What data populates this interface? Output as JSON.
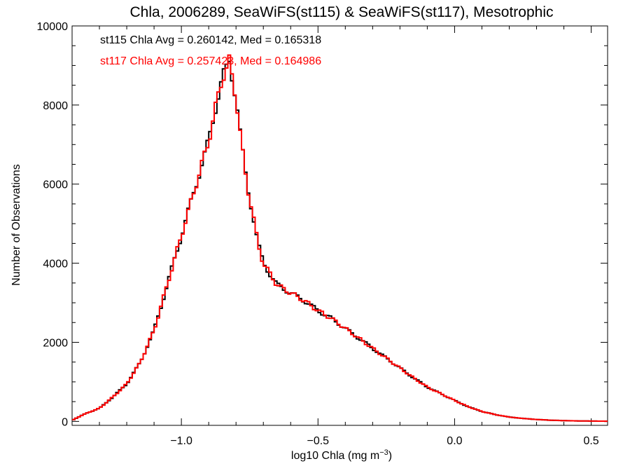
{
  "chart_data": {
    "type": "line",
    "step": true,
    "title": "Chla, 2006289, SeaWiFS(st115) & SeaWiFS(st117), Mesotrophic",
    "xlabel_main": "log10 Chla (mg m",
    "xlabel_sup": "−3",
    "xlabel_close": ")",
    "ylabel": "Number of Observations",
    "xlim": [
      -1.4,
      0.56
    ],
    "ylim": [
      -100,
      10000
    ],
    "xticks": [
      -1.0,
      -0.5,
      0.0,
      0.5
    ],
    "xtick_labels": [
      "−1.0",
      "−0.5",
      "0.0",
      "0.5"
    ],
    "yticks": [
      0,
      2000,
      4000,
      6000,
      8000,
      10000
    ],
    "ytick_labels": [
      "0",
      "2000",
      "4000",
      "6000",
      "8000",
      "10000"
    ],
    "annotations": [
      {
        "text": "st115 Chla Avg = 0.260142, Med = 0.165318",
        "color": "#000000"
      },
      {
        "text": "st117 Chla Avg = 0.257423, Med = 0.164986",
        "color": "#ff0000"
      }
    ],
    "shape_points": [
      [
        -1.4,
        30
      ],
      [
        -1.35,
        200
      ],
      [
        -1.3,
        330
      ],
      [
        -1.25,
        620
      ],
      [
        -1.2,
        950
      ],
      [
        -1.15,
        1500
      ],
      [
        -1.1,
        2300
      ],
      [
        -1.05,
        3500
      ],
      [
        -1.0,
        4700
      ],
      [
        -0.95,
        5900
      ],
      [
        -0.9,
        7100
      ],
      [
        -0.87,
        8100
      ],
      [
        -0.85,
        8700
      ],
      [
        -0.835,
        8900
      ],
      [
        -0.825,
        9100
      ],
      [
        -0.8,
        8200
      ],
      [
        -0.78,
        7000
      ],
      [
        -0.76,
        6000
      ],
      [
        -0.74,
        5300
      ],
      [
        -0.72,
        4500
      ],
      [
        -0.7,
        4000
      ],
      [
        -0.65,
        3450
      ],
      [
        -0.6,
        3250
      ],
      [
        -0.55,
        3050
      ],
      [
        -0.5,
        2800
      ],
      [
        -0.45,
        2600
      ],
      [
        -0.4,
        2350
      ],
      [
        -0.35,
        2100
      ],
      [
        -0.3,
        1850
      ],
      [
        -0.25,
        1600
      ],
      [
        -0.2,
        1350
      ],
      [
        -0.15,
        1100
      ],
      [
        -0.1,
        870
      ],
      [
        -0.05,
        700
      ],
      [
        0.0,
        530
      ],
      [
        0.05,
        370
      ],
      [
        0.1,
        250
      ],
      [
        0.15,
        170
      ],
      [
        0.2,
        110
      ],
      [
        0.25,
        75
      ],
      [
        0.3,
        48
      ],
      [
        0.35,
        30
      ],
      [
        0.4,
        20
      ],
      [
        0.45,
        12
      ],
      [
        0.5,
        8
      ],
      [
        0.56,
        5
      ]
    ],
    "series": [
      {
        "name": "st115",
        "color": "#000000",
        "bin_width": 0.01
      },
      {
        "name": "st117",
        "color": "#ff0000",
        "bin_width": 0.01
      }
    ]
  }
}
